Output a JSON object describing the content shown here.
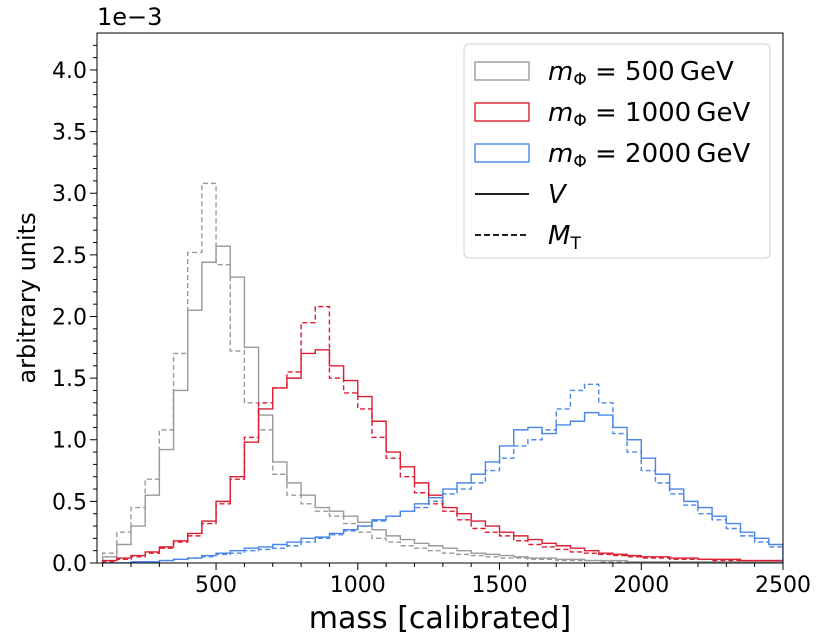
{
  "chart_data": {
    "type": "histogram-step",
    "xlabel": "mass [calibrated]",
    "ylabel": "arbitrary units",
    "y_offset_text": "1e−3",
    "y_scale": 0.001,
    "xlim": [
      80,
      2500
    ],
    "ylim": [
      0.0,
      4.3
    ],
    "xticks": [
      500,
      1000,
      1500,
      2000,
      2500
    ],
    "yticks": [
      0.0,
      0.5,
      1.0,
      1.5,
      2.0,
      2.5,
      3.0,
      3.5,
      4.0
    ],
    "bin_width": 50,
    "grid": false,
    "legend_position": "top-right",
    "colors": {
      "m500": "#9a9a9a",
      "m1000": "#dc1e32",
      "m2000": "#4a86e8"
    },
    "legend": [
      {
        "kind": "patch",
        "color_key": "m500",
        "prefix": "m",
        "sub": "Φ",
        "value": " = 500 GeV"
      },
      {
        "kind": "patch",
        "color_key": "m1000",
        "prefix": "m",
        "sub": "Φ",
        "value": " = 1000 GeV"
      },
      {
        "kind": "patch",
        "color_key": "m2000",
        "prefix": "m",
        "sub": "Φ",
        "value": " = 2000 GeV"
      },
      {
        "kind": "line",
        "dash": "solid",
        "prefix": "V",
        "sub": "",
        "value": ""
      },
      {
        "kind": "line",
        "dash": "dashed",
        "prefix": "M",
        "sub": "T",
        "value": ""
      }
    ],
    "series": [
      {
        "color_key": "m500",
        "style": "solid",
        "x0": 100,
        "values": [
          0.05,
          0.15,
          0.3,
          0.55,
          0.92,
          1.4,
          2.05,
          2.44,
          2.57,
          2.32,
          1.75,
          1.2,
          0.82,
          0.65,
          0.55,
          0.45,
          0.42,
          0.38,
          0.33,
          0.27,
          0.22,
          0.19,
          0.16,
          0.14,
          0.12,
          0.1,
          0.08,
          0.07,
          0.06,
          0.05,
          0.04,
          0.04,
          0.03,
          0.03,
          0.02,
          0.02,
          0.02,
          0.01,
          0.01,
          0.01,
          0.01,
          0.01,
          0.01,
          0.01,
          0.01,
          0.01,
          0.01,
          0.01
        ]
      },
      {
        "color_key": "m500",
        "style": "dashed",
        "x0": 100,
        "values": [
          0.08,
          0.25,
          0.45,
          0.68,
          1.08,
          1.7,
          2.52,
          3.08,
          2.42,
          1.72,
          1.3,
          1.08,
          0.72,
          0.55,
          0.48,
          0.42,
          0.38,
          0.32,
          0.25,
          0.2,
          0.17,
          0.14,
          0.12,
          0.1,
          0.08,
          0.07,
          0.06,
          0.05,
          0.04,
          0.04,
          0.03,
          0.03,
          0.02,
          0.02,
          0.02,
          0.01,
          0.01,
          0.01,
          0.01,
          0.01,
          0.01,
          0.01,
          0.01,
          0.01,
          0.01,
          0.01,
          0.01,
          0.01
        ]
      },
      {
        "color_key": "m1000",
        "style": "solid",
        "x0": 100,
        "values": [
          0.02,
          0.04,
          0.06,
          0.09,
          0.13,
          0.18,
          0.24,
          0.34,
          0.5,
          0.7,
          0.98,
          1.25,
          1.42,
          1.5,
          1.7,
          1.73,
          1.6,
          1.48,
          1.35,
          1.15,
          0.9,
          0.78,
          0.65,
          0.55,
          0.45,
          0.4,
          0.34,
          0.3,
          0.25,
          0.22,
          0.19,
          0.16,
          0.14,
          0.12,
          0.1,
          0.08,
          0.07,
          0.06,
          0.05,
          0.05,
          0.04,
          0.04,
          0.03,
          0.03,
          0.03,
          0.02,
          0.02,
          0.02
        ]
      },
      {
        "color_key": "m1000",
        "style": "dashed",
        "x0": 100,
        "values": [
          0.01,
          0.03,
          0.05,
          0.08,
          0.12,
          0.17,
          0.22,
          0.32,
          0.48,
          0.68,
          1.02,
          1.3,
          1.42,
          1.55,
          1.95,
          2.08,
          1.5,
          1.38,
          1.25,
          1.02,
          0.85,
          0.7,
          0.57,
          0.48,
          0.42,
          0.35,
          0.28,
          0.25,
          0.22,
          0.18,
          0.15,
          0.13,
          0.11,
          0.09,
          0.08,
          0.07,
          0.06,
          0.05,
          0.04,
          0.04,
          0.03,
          0.03,
          0.03,
          0.02,
          0.02,
          0.02,
          0.02,
          0.02
        ]
      },
      {
        "color_key": "m2000",
        "style": "solid",
        "x0": 100,
        "values": [
          0.0,
          0.0,
          0.01,
          0.01,
          0.02,
          0.03,
          0.04,
          0.06,
          0.08,
          0.1,
          0.12,
          0.13,
          0.15,
          0.17,
          0.2,
          0.21,
          0.24,
          0.27,
          0.3,
          0.35,
          0.38,
          0.42,
          0.48,
          0.53,
          0.6,
          0.65,
          0.72,
          0.82,
          0.95,
          1.08,
          1.1,
          1.05,
          1.12,
          1.15,
          1.22,
          1.2,
          1.1,
          1.0,
          0.85,
          0.72,
          0.6,
          0.5,
          0.45,
          0.38,
          0.32,
          0.25,
          0.2,
          0.15
        ]
      },
      {
        "color_key": "m2000",
        "style": "dashed",
        "x0": 100,
        "values": [
          0.0,
          0.0,
          0.01,
          0.01,
          0.02,
          0.03,
          0.04,
          0.05,
          0.07,
          0.08,
          0.1,
          0.11,
          0.12,
          0.14,
          0.17,
          0.2,
          0.23,
          0.26,
          0.3,
          0.34,
          0.38,
          0.42,
          0.45,
          0.5,
          0.56,
          0.6,
          0.65,
          0.75,
          0.85,
          0.95,
          1.0,
          1.08,
          1.25,
          1.4,
          1.45,
          1.3,
          1.05,
          0.9,
          0.75,
          0.65,
          0.56,
          0.47,
          0.4,
          0.35,
          0.28,
          0.22,
          0.17,
          0.13
        ]
      }
    ]
  }
}
